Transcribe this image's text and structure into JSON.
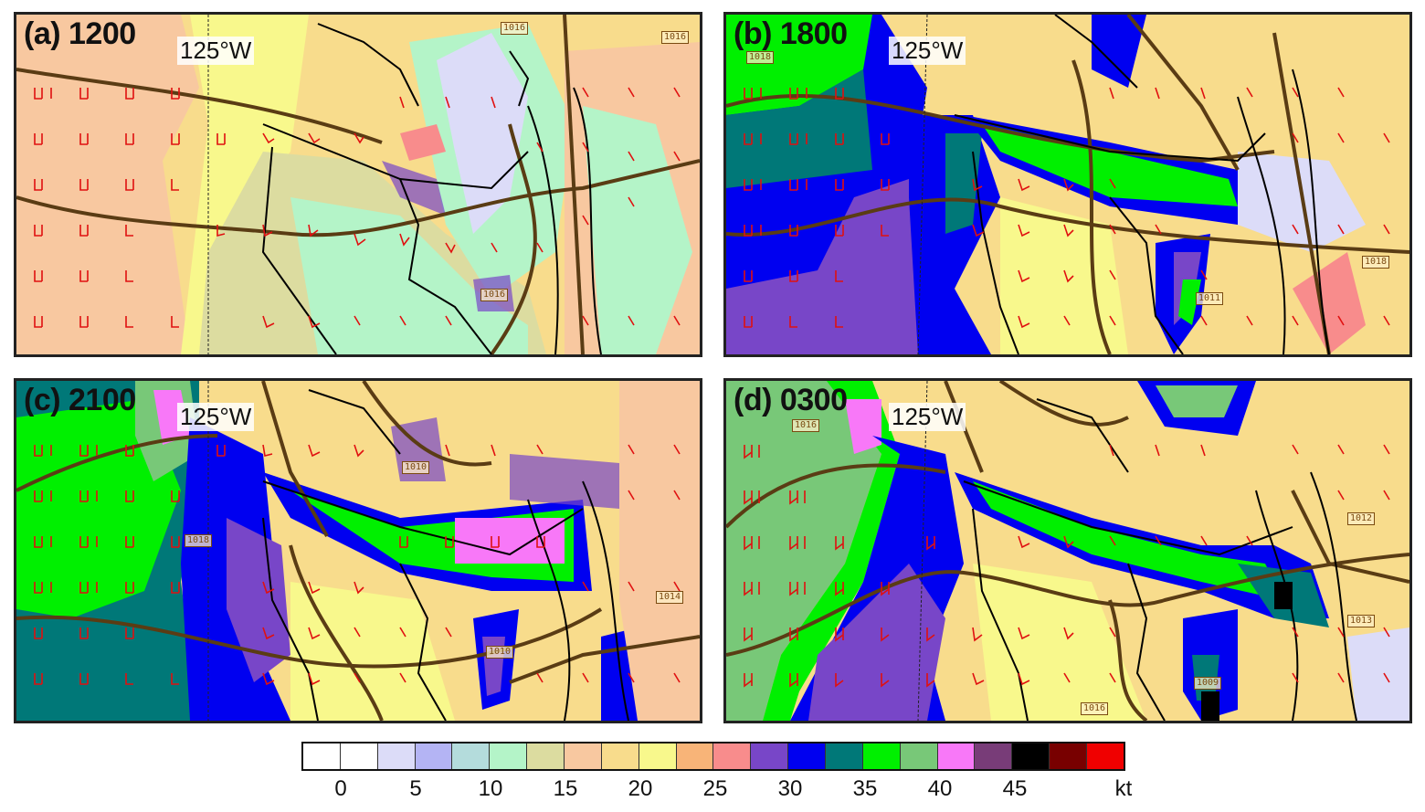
{
  "panels": [
    {
      "label": "(a) 1200",
      "lon_label": "125°W",
      "pressure_labels": [
        "1016",
        "1016",
        "1016"
      ]
    },
    {
      "label": "(b) 1800",
      "lon_label": "125°W",
      "pressure_labels": [
        "1018",
        "1018",
        "1011"
      ]
    },
    {
      "label": "(c) 2100",
      "lon_label": "125°W",
      "pressure_labels": [
        "1010",
        "1018",
        "1014",
        "1010"
      ]
    },
    {
      "label": "(d) 0300",
      "lon_label": "125°W",
      "pressure_labels": [
        "1016",
        "1012",
        "1013",
        "1009",
        "1016"
      ]
    }
  ],
  "colorbar": {
    "colors": [
      "#ffffff",
      "#ffffff",
      "#dcdcf8",
      "#b4b4f4",
      "#b4dcdc",
      "#b4f4c8",
      "#dcdca0",
      "#f8c8a0",
      "#f8dc8c",
      "#f8f88c",
      "#f8b478",
      "#f88c8c",
      "#7846c8",
      "#0000f0",
      "#007878",
      "#00f000",
      "#78c878",
      "#f878f8",
      "#783c78",
      "#000000",
      "#780000",
      "#f00000"
    ],
    "tick_labels": [
      "0",
      "5",
      "10",
      "15",
      "20",
      "25",
      "30",
      "35",
      "40",
      "45"
    ],
    "unit": "kt"
  }
}
